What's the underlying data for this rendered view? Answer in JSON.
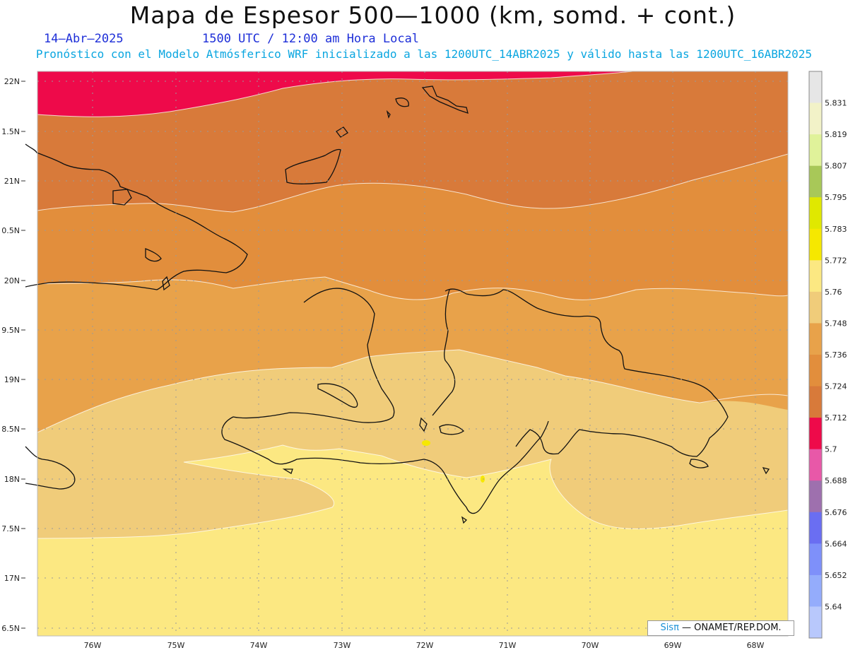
{
  "header": {
    "title": "Mapa de Espesor 500—1000 (km, somd. + cont.)",
    "date": "14—Abr—2025",
    "time": "1500 UTC / 12:00 am Hora Local",
    "description": "Pronóstico con el Modelo Atmósferico WRF inicializado a las 1200UTC_14ABR2025 y válido hasta las  1200UTC_16ABR2025"
  },
  "credit": {
    "brand": "Sisπ",
    "text": " — ONAMET/REP.DOM."
  },
  "map": {
    "lat_labels": [
      "22N",
      "1.5N",
      "21N",
      "0.5N",
      "20N",
      "9.5N",
      "19N",
      "8.5N",
      "18N",
      "7.5N",
      "17N",
      "6.5N"
    ],
    "lon_labels": [
      "76W",
      "75W",
      "74W",
      "73W",
      "72W",
      "71W",
      "70W",
      "69W",
      "68W"
    ],
    "bands": [
      {
        "value": "5.700-5.712",
        "color": "#ee0a4a"
      },
      {
        "value": "5.712-5.724",
        "color": "#d87a3a"
      },
      {
        "value": "5.724-5.736",
        "color": "#e28e3c"
      },
      {
        "value": "5.736-5.748",
        "color": "#e8a24a"
      },
      {
        "value": "5.748-5.760",
        "color": "#f0cc7a"
      },
      {
        "value": "5.760-5.772",
        "color": "#fce882"
      },
      {
        "value": "5.772-5.783",
        "color": "#f6e800"
      }
    ]
  },
  "colorbar": {
    "labels": [
      "5.831",
      "5.819",
      "5.807",
      "5.795",
      "5.783",
      "5.772",
      "5.76",
      "5.748",
      "5.736",
      "5.724",
      "5.712",
      "5.7",
      "5.688",
      "5.676",
      "5.664",
      "5.652",
      "5.64"
    ],
    "colors": [
      "#e6e6e6",
      "#f2f2c8",
      "#e0f29a",
      "#a8c858",
      "#e0e800",
      "#f6e800",
      "#fce882",
      "#f0cc7a",
      "#e8a24a",
      "#e28e3c",
      "#d87a3a",
      "#ee0a4a",
      "#e858a8",
      "#9e70ae",
      "#6a6ef2",
      "#7e90fa",
      "#94acfc",
      "#b8c8fc"
    ]
  }
}
